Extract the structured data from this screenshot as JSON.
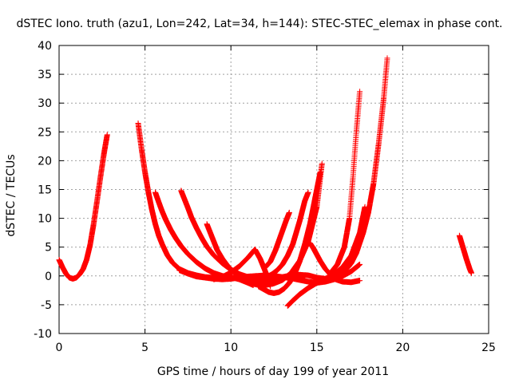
{
  "chart_data": {
    "type": "scatter",
    "title": "dSTEC Iono. truth (azu1, Lon=242, Lat=34, h=144): STEC-STEC_elemax in phase cont.",
    "xlabel": "GPS time / hours of day 199 of year 2011",
    "ylabel": "dSTEC  / TECUs",
    "xlim": [
      0,
      25
    ],
    "ylim": [
      -10,
      40
    ],
    "x_ticks": [
      "0",
      "5",
      "10",
      "15",
      "20",
      "25"
    ],
    "y_ticks": [
      "-10",
      "-5",
      "0",
      "5",
      "10",
      "15",
      "20",
      "25",
      "30",
      "35",
      "40"
    ],
    "grid": true,
    "legend": "none",
    "marker": "+",
    "color": "#ff0000",
    "arcs": [
      {
        "x": [
          0.0,
          0.2,
          0.4,
          0.6,
          0.8,
          1.0,
          1.2,
          1.4,
          1.6,
          1.8,
          2.0,
          2.2,
          2.4,
          2.6,
          2.8
        ],
        "y": [
          2.8,
          1.5,
          0.4,
          -0.3,
          -0.5,
          -0.3,
          0.3,
          1.2,
          2.8,
          5.3,
          8.8,
          12.8,
          17.0,
          21.0,
          24.5
        ]
      },
      {
        "x": [
          4.6,
          4.8,
          5.0,
          5.2,
          5.4,
          5.6,
          5.8,
          6.0,
          6.3,
          6.6,
          7.0,
          7.5,
          8.0,
          8.5,
          9.0,
          9.5,
          10.0
        ],
        "y": [
          26.5,
          22.0,
          18.0,
          14.5,
          11.5,
          9.0,
          7.0,
          5.5,
          3.6,
          2.3,
          1.2,
          0.5,
          0.1,
          -0.2,
          -0.3,
          -0.4,
          -0.3
        ]
      },
      {
        "x": [
          5.6,
          5.8,
          6.0,
          6.2,
          6.5,
          6.8,
          7.1,
          7.5,
          8.0,
          8.5,
          9.0,
          9.5,
          10.0,
          10.5,
          11.0,
          11.3
        ],
        "y": [
          14.5,
          12.8,
          11.2,
          9.8,
          8.0,
          6.5,
          5.2,
          3.8,
          2.4,
          1.3,
          0.5,
          0.0,
          -0.2,
          -0.6,
          -1.2,
          -1.6
        ]
      },
      {
        "x": [
          7.1,
          7.3,
          7.5,
          7.7,
          8.0,
          8.3,
          8.6,
          9.0,
          9.5,
          10.0,
          10.5,
          11.0,
          11.5,
          12.0,
          12.5,
          13.0,
          13.5,
          14.0,
          14.3
        ],
        "y": [
          14.8,
          13.3,
          11.8,
          10.2,
          8.3,
          6.6,
          5.1,
          3.6,
          2.2,
          1.1,
          0.3,
          -0.2,
          -0.4,
          -0.5,
          -0.4,
          -0.2,
          0.1,
          0.2,
          0.0
        ]
      },
      {
        "x": [
          8.6,
          8.8,
          9.0,
          9.2,
          9.5,
          9.8,
          10.1,
          10.5,
          11.0,
          11.5,
          12.0,
          12.5,
          13.0,
          13.5,
          14.0,
          14.5,
          15.0,
          15.5,
          16.0,
          16.5,
          17.0,
          17.3
        ],
        "y": [
          9.0,
          7.5,
          6.0,
          4.5,
          3.0,
          1.8,
          0.8,
          0.0,
          -0.6,
          -0.9,
          -1.0,
          -0.8,
          -0.4,
          0.0,
          0.2,
          0.1,
          -0.3,
          -0.5,
          -0.2,
          0.6,
          2.2,
          4.0
        ]
      },
      {
        "x": [
          7.0,
          7.5,
          8.0,
          8.5,
          9.0,
          9.5,
          10.0,
          10.5,
          11.0,
          11.5,
          12.0,
          12.5,
          13.0,
          13.5,
          14.0,
          14.5,
          15.0,
          15.5,
          16.0,
          16.5,
          17.0,
          17.5
        ],
        "y": [
          1.0,
          0.4,
          -0.1,
          -0.3,
          -0.5,
          -0.6,
          -0.5,
          -0.3,
          -0.1,
          0.0,
          0.1,
          0.0,
          -0.2,
          -0.4,
          -0.7,
          -1.0,
          -1.2,
          -1.0,
          -0.6,
          0.0,
          0.8,
          2.0
        ]
      },
      {
        "x": [
          9.0,
          9.5,
          10.0,
          10.5,
          11.0,
          11.4,
          11.7,
          12.0,
          12.3
        ],
        "y": [
          -0.6,
          -0.2,
          0.6,
          1.7,
          3.2,
          4.6,
          3.0,
          0.8,
          -1.8
        ]
      },
      {
        "x": [
          12.0,
          12.3,
          12.6,
          12.9,
          13.2,
          13.4
        ],
        "y": [
          1.5,
          2.5,
          4.5,
          7.0,
          9.5,
          11.0
        ]
      },
      {
        "x": [
          11.5,
          11.8,
          12.1,
          12.4,
          12.7,
          13.0,
          13.3,
          13.6,
          14.0,
          14.3,
          14.5
        ],
        "y": [
          -0.6,
          -0.4,
          -0.2,
          0.3,
          1.0,
          2.0,
          3.5,
          5.5,
          9.5,
          13.0,
          14.5
        ]
      },
      {
        "x": [
          11.0,
          11.5,
          12.0,
          12.5,
          13.0,
          13.5,
          14.0,
          14.5,
          15.0,
          15.3
        ],
        "y": [
          -1.2,
          -1.5,
          -1.6,
          -1.3,
          -0.7,
          0.5,
          2.6,
          6.0,
          12.0,
          19.5
        ]
      },
      {
        "x": [
          11.6,
          11.9,
          12.2,
          12.5,
          12.8,
          13.1,
          13.4,
          13.7,
          14.0,
          14.3,
          14.6,
          14.9,
          15.2
        ],
        "y": [
          -1.8,
          -2.3,
          -2.8,
          -3.0,
          -2.8,
          -2.2,
          -1.2,
          0.3,
          2.5,
          5.5,
          9.0,
          13.5,
          18.0
        ]
      },
      {
        "x": [
          14.6,
          14.8,
          15.0,
          15.2,
          15.5,
          15.8,
          16.1,
          16.5,
          17.0,
          17.5
        ],
        "y": [
          5.7,
          4.8,
          3.7,
          2.6,
          1.2,
          0.2,
          -0.6,
          -1.0,
          -1.1,
          -0.8
        ]
      },
      {
        "x": [
          13.3,
          13.6,
          14.0,
          14.5,
          15.0,
          15.5,
          16.0,
          16.5,
          17.0,
          17.5,
          17.8
        ],
        "y": [
          -5.2,
          -4.3,
          -3.2,
          -2.1,
          -1.2,
          -0.5,
          0.3,
          1.5,
          3.5,
          7.5,
          12.0
        ]
      },
      {
        "x": [
          15.8,
          16.2,
          16.6,
          16.9,
          17.1,
          17.3,
          17.5
        ],
        "y": [
          0.5,
          2.0,
          5.0,
          10.0,
          17.0,
          25.0,
          32.0
        ]
      },
      {
        "x": [
          16.5,
          16.9,
          17.3,
          17.7,
          18.0,
          18.3,
          18.6,
          18.9,
          19.1
        ],
        "y": [
          0.5,
          1.8,
          4.0,
          7.5,
          11.0,
          16.0,
          23.0,
          31.0,
          37.8
        ]
      },
      {
        "x": [
          23.3,
          23.5,
          23.7,
          23.9,
          24.0
        ],
        "y": [
          7.0,
          5.0,
          3.0,
          1.2,
          0.5
        ]
      }
    ]
  }
}
